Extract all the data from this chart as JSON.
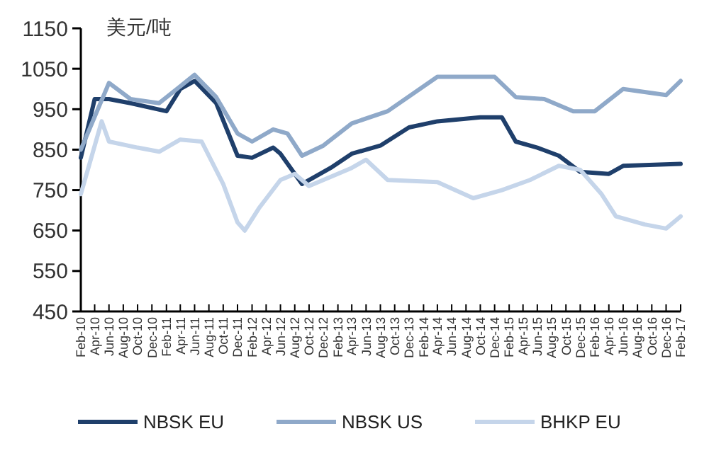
{
  "chart_data": {
    "type": "line",
    "ylabel": "美元/吨",
    "ylim": [
      450,
      1150
    ],
    "yticks": [
      450,
      550,
      650,
      750,
      850,
      950,
      1050,
      1150
    ],
    "xlim": [
      "2010-02",
      "2017-02"
    ],
    "xticks": [
      {
        "value": "2010-02",
        "label": "Feb-10"
      },
      {
        "value": "2010-04",
        "label": "Apr-10"
      },
      {
        "value": "2010-06",
        "label": "Jun-10"
      },
      {
        "value": "2010-08",
        "label": "Aug-10"
      },
      {
        "value": "2010-10",
        "label": "Oct-10"
      },
      {
        "value": "2010-12",
        "label": "Dec-10"
      },
      {
        "value": "2011-02",
        "label": "Feb-11"
      },
      {
        "value": "2011-04",
        "label": "Apr-11"
      },
      {
        "value": "2011-06",
        "label": "Jun-11"
      },
      {
        "value": "2011-08",
        "label": "Aug-11"
      },
      {
        "value": "2011-10",
        "label": "Oct-11"
      },
      {
        "value": "2011-12",
        "label": "Dec-11"
      },
      {
        "value": "2012-02",
        "label": "Feb-12"
      },
      {
        "value": "2012-04",
        "label": "Apr-12"
      },
      {
        "value": "2012-06",
        "label": "Jun-12"
      },
      {
        "value": "2012-08",
        "label": "Aug-12"
      },
      {
        "value": "2012-10",
        "label": "Oct-12"
      },
      {
        "value": "2012-12",
        "label": "Dec-12"
      },
      {
        "value": "2013-02",
        "label": "Feb-13"
      },
      {
        "value": "2013-04",
        "label": "Apr-13"
      },
      {
        "value": "2013-06",
        "label": "Jun-13"
      },
      {
        "value": "2013-08",
        "label": "Aug-13"
      },
      {
        "value": "2013-10",
        "label": "Oct-13"
      },
      {
        "value": "2013-12",
        "label": "Dec-13"
      },
      {
        "value": "2014-02",
        "label": "Feb-14"
      },
      {
        "value": "2014-04",
        "label": "Apr-14"
      },
      {
        "value": "2014-06",
        "label": "Jun-14"
      },
      {
        "value": "2014-08",
        "label": "Aug-14"
      },
      {
        "value": "2014-10",
        "label": "Oct-14"
      },
      {
        "value": "2014-12",
        "label": "Dec-14"
      },
      {
        "value": "2015-02",
        "label": "Feb-15"
      },
      {
        "value": "2015-04",
        "label": "Apr-15"
      },
      {
        "value": "2015-06",
        "label": "Jun-15"
      },
      {
        "value": "2015-08",
        "label": "Aug-15"
      },
      {
        "value": "2015-10",
        "label": "Oct-15"
      },
      {
        "value": "2015-12",
        "label": "Dec-15"
      },
      {
        "value": "2016-02",
        "label": "Feb-16"
      },
      {
        "value": "2016-04",
        "label": "Apr-16"
      },
      {
        "value": "2016-06",
        "label": "Jun-16"
      },
      {
        "value": "2016-08",
        "label": "Aug-16"
      },
      {
        "value": "2016-10",
        "label": "Oct-16"
      },
      {
        "value": "2016-12",
        "label": "Dec-16"
      },
      {
        "value": "2017-02",
        "label": "Feb-17"
      }
    ],
    "legend": "bottom",
    "grid": false,
    "marker": "none",
    "line_style": "solid",
    "series": [
      {
        "name": "NBSK EU",
        "color": "#1f3f6b",
        "x": [
          "2010-02",
          "2010-04",
          "2010-06",
          "2010-09",
          "2011-02",
          "2011-04",
          "2011-06",
          "2011-09",
          "2011-12",
          "2012-02",
          "2012-05",
          "2012-06",
          "2012-09",
          "2013-01",
          "2013-04",
          "2013-08",
          "2013-12",
          "2014-04",
          "2014-10",
          "2015-01",
          "2015-03",
          "2015-06",
          "2015-09",
          "2015-12",
          "2016-04",
          "2016-06",
          "2017-02"
        ],
        "values": [
          830,
          975,
          975,
          965,
          945,
          1000,
          1020,
          965,
          835,
          830,
          855,
          840,
          765,
          805,
          840,
          860,
          905,
          920,
          930,
          930,
          870,
          855,
          835,
          795,
          790,
          810,
          815
        ]
      },
      {
        "name": "NBSK US",
        "color": "#8fa9c9",
        "x": [
          "2010-02",
          "2010-06",
          "2010-09",
          "2011-01",
          "2011-06",
          "2011-09",
          "2011-12",
          "2012-02",
          "2012-05",
          "2012-07",
          "2012-09",
          "2012-12",
          "2013-04",
          "2013-09",
          "2014-04",
          "2014-12",
          "2015-03",
          "2015-07",
          "2015-11",
          "2016-02",
          "2016-06",
          "2016-12",
          "2017-02"
        ],
        "values": [
          850,
          1015,
          975,
          965,
          1035,
          980,
          890,
          870,
          900,
          890,
          835,
          860,
          915,
          945,
          1030,
          1030,
          980,
          975,
          945,
          945,
          1000,
          985,
          1020
        ]
      },
      {
        "name": "BHKP EU",
        "color": "#c5d5ea",
        "x": [
          "2010-02",
          "2010-05",
          "2010-06",
          "2010-10",
          "2011-01",
          "2011-04",
          "2011-07",
          "2011-10",
          "2011-12",
          "2012-01",
          "2012-03",
          "2012-06",
          "2012-08",
          "2012-10",
          "2013-04",
          "2013-06",
          "2013-09",
          "2014-04",
          "2014-09",
          "2015-01",
          "2015-05",
          "2015-09",
          "2015-12",
          "2016-03",
          "2016-05",
          "2016-09",
          "2016-12",
          "2017-02"
        ],
        "values": [
          740,
          920,
          870,
          855,
          845,
          875,
          870,
          765,
          670,
          650,
          705,
          775,
          790,
          760,
          805,
          825,
          775,
          770,
          730,
          750,
          775,
          810,
          800,
          740,
          685,
          665,
          655,
          685
        ]
      }
    ]
  }
}
